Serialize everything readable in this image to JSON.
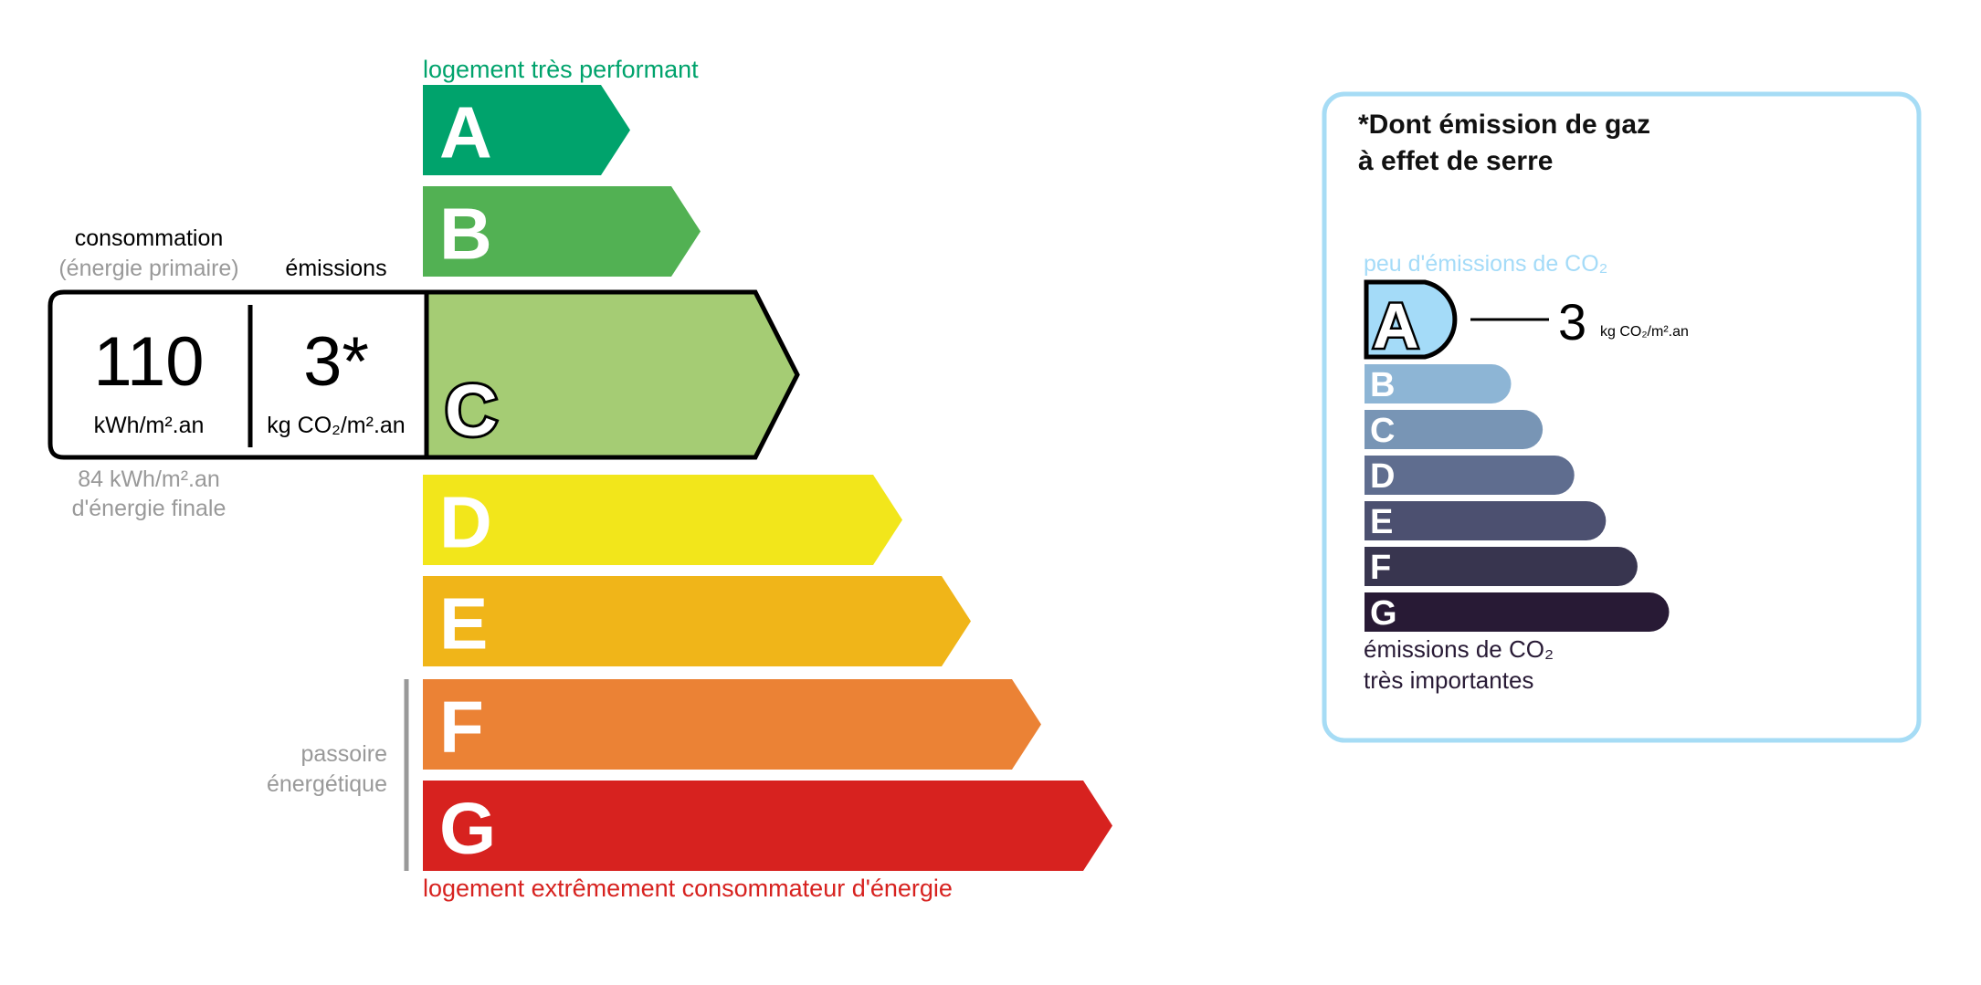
{
  "energy": {
    "top_label": "logement très performant",
    "bottom_label": "logement extrêmement consommateur d'énergie",
    "passoire": [
      "passoire",
      "énergétique"
    ],
    "selected_class": "C",
    "classes": [
      {
        "letter": "A",
        "color": "#00a36c"
      },
      {
        "letter": "B",
        "color": "#52b153"
      },
      {
        "letter": "C",
        "color": "#a5cc74"
      },
      {
        "letter": "D",
        "color": "#f2e61b"
      },
      {
        "letter": "E",
        "color": "#f0b519"
      },
      {
        "letter": "F",
        "color": "#eb8235"
      },
      {
        "letter": "G",
        "color": "#d7221f"
      }
    ],
    "consumption_label": "consommation",
    "consumption_sublabel": "(énergie primaire)",
    "emissions_label": "émissions",
    "consumption_value": "110",
    "consumption_unit": "kWh/m².an",
    "emissions_value": "3*",
    "emissions_unit": "kg CO₂/m².an",
    "final_energy": "84 kWh/m².an",
    "final_energy_label": "d'énergie finale"
  },
  "ghg": {
    "title_line1": "*Dont émission de gaz",
    "title_line2": "à effet de serre",
    "top_label": "peu d'émissions de CO₂",
    "bottom_label_line1": "émissions de CO₂",
    "bottom_label_line2": "très importantes",
    "selected_class": "A",
    "value": "3",
    "unit": "kg CO₂/m².an",
    "border_color": "#a6dcf5",
    "classes": [
      {
        "letter": "A",
        "color": "#a4dbf8"
      },
      {
        "letter": "B",
        "color": "#8db5d5"
      },
      {
        "letter": "C",
        "color": "#7895b5"
      },
      {
        "letter": "D",
        "color": "#5f6d8f"
      },
      {
        "letter": "E",
        "color": "#4c5070"
      },
      {
        "letter": "F",
        "color": "#38354f"
      },
      {
        "letter": "G",
        "color": "#281a35"
      }
    ]
  }
}
